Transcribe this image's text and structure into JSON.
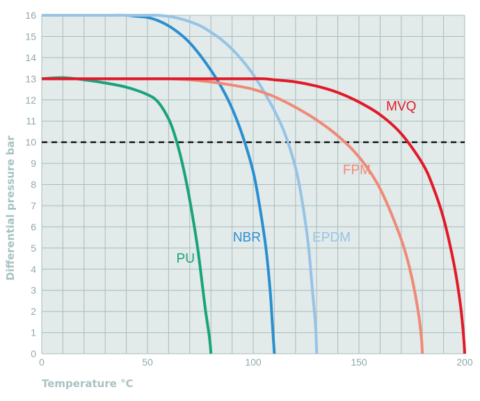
{
  "chart_data": {
    "type": "line",
    "xlabel": "Temperature °C",
    "ylabel": "Differential pressure bar",
    "xlim": [
      0,
      200
    ],
    "ylim": [
      0,
      16
    ],
    "x_ticks": [
      0,
      50,
      100,
      150,
      200
    ],
    "y_ticks": [
      0,
      1,
      2,
      3,
      4,
      5,
      6,
      7,
      8,
      9,
      10,
      11,
      12,
      13,
      14,
      15,
      16
    ],
    "grid": true,
    "x_grid_step": 10,
    "y_grid_step": 1,
    "plot_background": "#e2eaea",
    "grid_color": "#a8bcbc",
    "reference_line": {
      "y": 10,
      "style": "dashed",
      "color": "#1a1a1a"
    },
    "series": [
      {
        "name": "PU",
        "color": "#1aa37a",
        "x": [
          0,
          10,
          20,
          30,
          40,
          50,
          55,
          60,
          63,
          66,
          69,
          72,
          74,
          76,
          77.5,
          79,
          79.7,
          80
        ],
        "y": [
          13,
          13.05,
          12.95,
          12.8,
          12.6,
          12.25,
          11.9,
          11.1,
          10.3,
          9.2,
          7.8,
          6.1,
          4.8,
          3.2,
          2.0,
          1.0,
          0.4,
          0
        ]
      },
      {
        "name": "NBR",
        "color": "#2a8fcf",
        "x": [
          0,
          10,
          20,
          30,
          40,
          45,
          50,
          55,
          60,
          65,
          70,
          75,
          80,
          85,
          90,
          95,
          100,
          103,
          106,
          108,
          109,
          110
        ],
        "y": [
          16,
          16,
          16,
          16,
          16,
          15.95,
          15.9,
          15.75,
          15.5,
          15.15,
          14.7,
          14.1,
          13.4,
          12.6,
          11.6,
          10.3,
          8.6,
          7.0,
          5.0,
          3.0,
          1.5,
          0
        ]
      },
      {
        "name": "EPDM",
        "color": "#96c3e6",
        "x": [
          0,
          10,
          20,
          30,
          40,
          50,
          55,
          60,
          65,
          70,
          75,
          80,
          85,
          90,
          95,
          100,
          105,
          110,
          115,
          120,
          123,
          126,
          128,
          129.5,
          130
        ],
        "y": [
          16,
          16,
          16,
          16,
          16,
          16,
          16,
          15.95,
          15.85,
          15.7,
          15.5,
          15.2,
          14.85,
          14.4,
          13.85,
          13.2,
          12.4,
          11.5,
          10.4,
          8.8,
          7.3,
          5.2,
          3.0,
          1.3,
          0
        ]
      },
      {
        "name": "FPM",
        "color": "#ee8a76",
        "x": [
          0,
          10,
          20,
          30,
          40,
          50,
          60,
          70,
          80,
          90,
          100,
          110,
          120,
          130,
          140,
          150,
          160,
          170,
          175,
          178,
          179.5,
          180
        ],
        "y": [
          13,
          13,
          13,
          13,
          13,
          13,
          13,
          12.95,
          12.85,
          12.7,
          12.5,
          12.15,
          11.65,
          11.05,
          10.3,
          9.3,
          7.8,
          5.4,
          3.6,
          2.0,
          0.8,
          0
        ]
      },
      {
        "name": "MVQ",
        "color": "#e01a28",
        "x": [
          0,
          20,
          40,
          60,
          80,
          90,
          100,
          105,
          110,
          120,
          130,
          140,
          150,
          160,
          170,
          180,
          185,
          190,
          195,
          198,
          199.5,
          200
        ],
        "y": [
          13,
          13,
          13,
          13,
          13,
          13,
          13,
          13,
          12.95,
          12.85,
          12.65,
          12.35,
          11.9,
          11.3,
          10.4,
          9.0,
          7.9,
          6.4,
          4.2,
          2.3,
          0.8,
          0
        ]
      }
    ],
    "series_labels": [
      {
        "name": "PU",
        "x": 68,
        "y": 4.3
      },
      {
        "name": "NBR",
        "x": 97,
        "y": 5.3
      },
      {
        "name": "EPDM",
        "x": 137,
        "y": 5.3
      },
      {
        "name": "FPM",
        "x": 149,
        "y": 8.5
      },
      {
        "name": "MVQ",
        "x": 170,
        "y": 11.5
      }
    ]
  }
}
